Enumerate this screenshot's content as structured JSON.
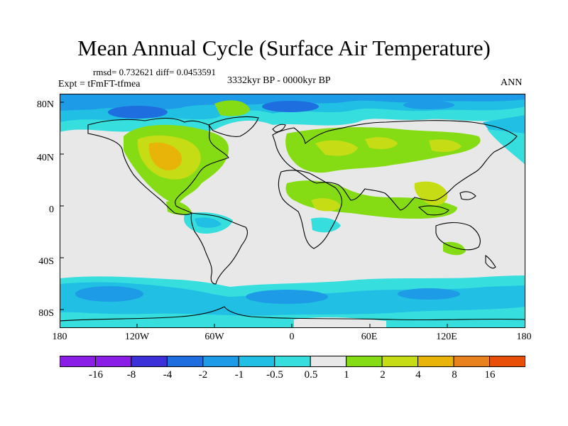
{
  "title": "Mean Annual Cycle (Surface Air Temperature)",
  "stats": "rmsd= 0.732621 diff= 0.0453591",
  "experiment": "Expt = tFmFT-tfmea",
  "period": "3332kyr BP - 0000kyr BP",
  "season": "ANN",
  "lat_labels": [
    "80N",
    "40N",
    "0",
    "40S",
    "80S"
  ],
  "lon_labels": [
    "180",
    "120W",
    "60W",
    "0",
    "60E",
    "120E",
    "180"
  ],
  "colorbar": {
    "labels": [
      "-16",
      "-8",
      "-4",
      "-2",
      "-1",
      "-0.5",
      "0.5",
      "1",
      "2",
      "4",
      "8",
      "16"
    ],
    "colors": [
      "#8a1ee6",
      "#3c30d8",
      "#1f6ee0",
      "#1e9be6",
      "#20bfe3",
      "#36dede",
      "#e8e8e8",
      "#86dc14",
      "#c6dc14",
      "#e8b40a",
      "#e8821e",
      "#e8500a"
    ]
  }
}
